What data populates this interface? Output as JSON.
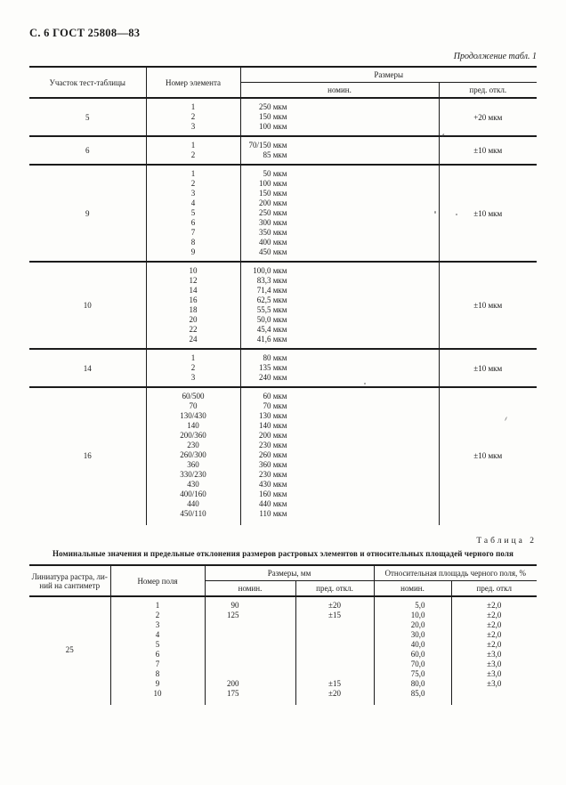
{
  "page": {
    "header": "С. 6 ГОСТ 25808—83",
    "table1_continuation": "Продолжение табл. 1",
    "table2_label": "Таблица 2",
    "table2_title": "Номинальные значения и предельные отклонения размеров растровых элементов и относительных площадей черного поля"
  },
  "table1": {
    "headers": {
      "section": "Участок тест-таблицы",
      "element": "Номер элемента",
      "sizes_group": "Размеры",
      "nominal": "номин.",
      "deviation": "пред. откл."
    },
    "sections": [
      {
        "section": "5",
        "elements": [
          "1",
          "2",
          "3"
        ],
        "nominals": [
          "250 мкм",
          "150 мкм",
          "100 мкм"
        ],
        "deviation": "+20 мкм"
      },
      {
        "section": "6",
        "elements": [
          "1",
          "2"
        ],
        "nominals": [
          "70/150 мкм",
          "85 мкм"
        ],
        "deviation": "±10 мкм"
      },
      {
        "section": "9",
        "elements": [
          "1",
          "2",
          "3",
          "4",
          "5",
          "6",
          "7",
          "8",
          "9"
        ],
        "nominals": [
          "50 мкм",
          "100 мкм",
          "150 мкм",
          "200 мкм",
          "250 мкм",
          "300 мкм",
          "350 мкм",
          "400 мкм",
          "450 мкм"
        ],
        "deviation": "±10 мкм"
      },
      {
        "section": "10",
        "elements": [
          "10",
          "12",
          "14",
          "16",
          "18",
          "20",
          "22",
          "24"
        ],
        "nominals": [
          "100,0 мкм",
          "83,3 мкм",
          "71,4 мкм",
          "62,5 мкм",
          "55,5 мкм",
          "50,0 мкм",
          "45,4 мкм",
          "41,6 мкм"
        ],
        "deviation": "±10 мкм"
      },
      {
        "section": "14",
        "elements": [
          "1",
          "2",
          "3"
        ],
        "nominals": [
          "80 мкм",
          "135 мкм",
          "240 мкм"
        ],
        "deviation": "±10 мкм"
      },
      {
        "section": "16",
        "elements": [
          "60/500",
          "70",
          "130/430",
          "140",
          "200/360",
          "230",
          "260/300",
          "360",
          "330/230",
          "430",
          "400/160",
          "440",
          "450/110"
        ],
        "nominals": [
          "60 мкм",
          "70 мкм",
          "130 мкм",
          "140 мкм",
          "200 мкм",
          "230 мкм",
          "260 мкм",
          "360 мкм",
          "230 мкм",
          "430 мкм",
          "160 мкм",
          "440 мкм",
          "110 мкм"
        ],
        "deviation": "±10 мкм"
      }
    ]
  },
  "table2": {
    "headers": {
      "lineature": "Линиатура растра, ли-\nний на сантиметр",
      "field": "Номер поля",
      "sizes_group": "Размеры, мм",
      "area_group": "Относительная площадь черного поля, %",
      "size_nominal": "номин.",
      "size_deviation": "пред. откл.",
      "area_nominal": "номин.",
      "area_deviation": "пред. откл"
    },
    "groups": [
      {
        "lineature": "25",
        "fields": [
          "1",
          "2",
          "3",
          "4",
          "5",
          "6",
          "7",
          "8",
          "9",
          "10"
        ],
        "sizes": [
          "90",
          "125",
          "",
          "",
          "",
          "",
          "",
          "",
          "200",
          "175"
        ],
        "size_devs": [
          "±20",
          "±15",
          "",
          "",
          "",
          "",
          "",
          "",
          "±15",
          "±20"
        ],
        "areas": [
          "5,0",
          "10,0",
          "20,0",
          "30,0",
          "40,0",
          "60,0",
          "70,0",
          "75,0",
          "80,0",
          "85,0"
        ],
        "area_devs": [
          "±2,0",
          "±2,0",
          "±2,0",
          "±2,0",
          "±2,0",
          "±3,0",
          "±3,0",
          "±3,0",
          "±3,0",
          ""
        ]
      }
    ]
  }
}
